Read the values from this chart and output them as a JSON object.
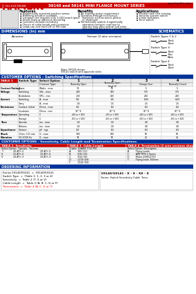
{
  "title": "59140 and 59141 MINI FLANGE MOUNT SERIES",
  "company": "HAMLIN",
  "website": "www.hamlin.com",
  "ul_text": "File E317850N",
  "bg_color": "#ffffff",
  "header_red": "#cc0000",
  "header_blue": "#003399",
  "features": [
    "Magnetically operated position sensor",
    "Matching actuator available",
    "Compact size requires only 3.250 board space",
    "Screw down or adhesive mounting",
    "Customer defined sensitivity",
    "Choice of cable length and connector",
    "Leads can exit from L/R or R/H side"
  ],
  "benefits": [
    "No standby power requirement",
    "Operates through non-ferrous",
    "materials such as wood, plastic",
    "or aluminum",
    "Hermetically sealed, magnetically",
    "operated contacts continue to",
    "operate long after optical and other",
    "technologies fail due to contamination"
  ],
  "applications": [
    "Position and limit sensing",
    "Security system switch",
    "Linear actuators",
    "Door switch"
  ],
  "table1_rows": [
    [
      "",
      "",
      "Contact Type",
      "Normally Open",
      "Normally Open (High V)",
      "Change Over",
      "Normally Closed"
    ],
    [
      "Contact Rating",
      "Power",
      "Watts - max",
      "10",
      "10",
      "5",
      "5"
    ],
    [
      "Voltage",
      "Switching",
      "Vdc - max",
      "200",
      "300",
      "175",
      "175"
    ],
    [
      "",
      "Breakdown",
      "VRL - min",
      "250",
      "450",
      "200",
      "200"
    ],
    [
      "Current",
      "Switching",
      "A - max",
      "0.5",
      "0.5",
      "0.25",
      "0.25"
    ],
    [
      "",
      "Carry",
      "A - max",
      "1.0",
      "1.5",
      "1.5",
      "1.5"
    ],
    [
      "Resistance",
      "Contact, Initial",
      "Ohms - max",
      "0.2",
      "0.2",
      "0.2",
      "0.2"
    ],
    [
      "",
      "Insulation",
      "Ohms - min",
      "10^9",
      "10^9",
      "10^9",
      "10^9"
    ],
    [
      "Temperature",
      "Operating",
      "C",
      "-40 to +105",
      "-20 to +105",
      "-40 to +105",
      "-40 to +105"
    ],
    [
      "",
      "Storage",
      "C",
      "-65 to +100",
      "-65 to +100",
      "-65 to +100",
      "-65 to +100"
    ],
    [
      "Time",
      "Operate",
      "ms - max",
      "1.0",
      "1.0",
      "3.0",
      "3.0"
    ],
    [
      "",
      "Release",
      "ms - max",
      "1.0",
      "1.0",
      "3.0",
      "3.0"
    ],
    [
      "Capacitance",
      "Contact",
      "pF - typ.",
      "0.3",
      "0.2",
      "0.3",
      "0.3"
    ],
    [
      "Shock",
      "11ms, 1/2 sine",
      "G - max",
      "100",
      "100",
      "50",
      "50"
    ],
    [
      "Vibration",
      "50-2000 Hz",
      "G - max",
      "50",
      "50",
      "20",
      "20"
    ]
  ],
  "sens_data": [
    [
      "T",
      "20 AT+-5",
      "20 AT+-5"
    ],
    [
      "S",
      "15 AT+-5",
      "15 AT+-5"
    ],
    [
      "V",
      "10 AT+-3",
      "10 AT+-3"
    ]
  ],
  "cable_data": [
    [
      "A",
      "305 (12)"
    ],
    [
      "B",
      "610 (24)"
    ],
    [
      "C",
      "914 (36)"
    ],
    [
      "D",
      "1219 (48)"
    ],
    [
      "F",
      "1524 (60)"
    ]
  ],
  "term_data": [
    [
      "A",
      "Flying Leads"
    ],
    [
      "C",
      "AMP MTE 2 Series"
    ],
    [
      "D",
      "Molex 2695/2759"
    ],
    [
      "T",
      "Flying leads 150mm"
    ]
  ],
  "ordering_lines": [
    "Series 59140/59141  =  59140/59141",
    "Switch Type  =  (Table 1: 1, 2, 3 or 4)",
    "Sensitivity  =  Table 2 (T, S or V)",
    "Cable Length  =  Table 3 (A, B, C, D or F)",
    "Termination  =  Table 4 (A, C, D or T)"
  ],
  "ordering_line_colors": [
    "black",
    "black",
    "black",
    "black",
    "red"
  ]
}
